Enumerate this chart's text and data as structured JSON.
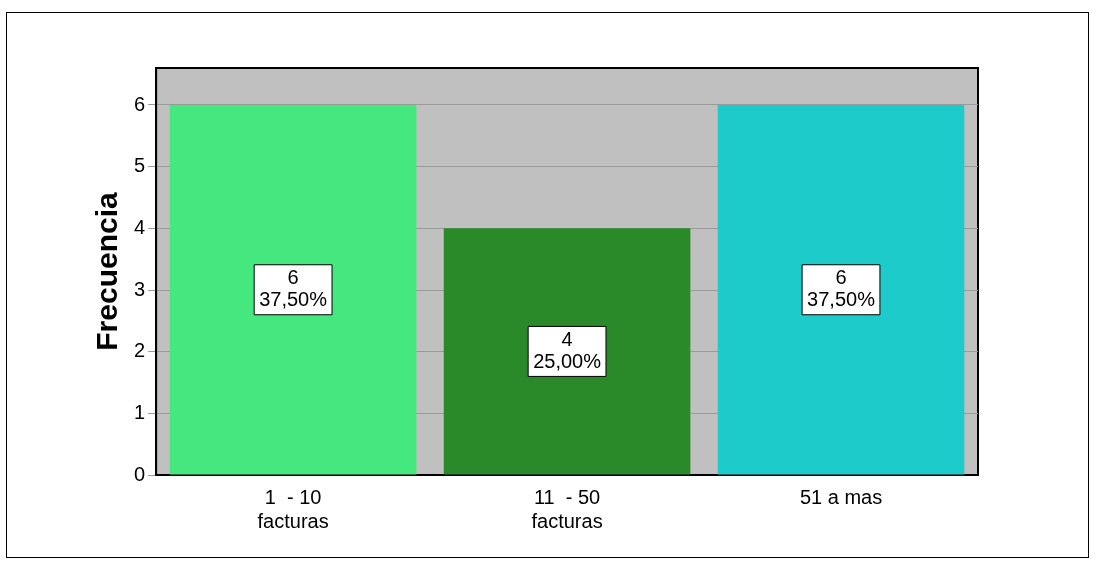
{
  "chart_data": {
    "type": "bar",
    "ylabel": "Frecuencia",
    "categories": [
      "1  - 10\nfacturas",
      "11  - 50\nfacturas",
      "51 a mas"
    ],
    "values": [
      6,
      4,
      6
    ],
    "colors": [
      "#44e87e",
      "#2a8a2a",
      "#1ecbcb"
    ],
    "value_labels": [
      "6\n37,50%",
      "4\n25,00%",
      "6\n37,50%"
    ],
    "ylim": [
      0,
      6.6
    ],
    "yticks": [
      0,
      1,
      2,
      3,
      4,
      5,
      6
    ],
    "grid": "y",
    "legend": false
  }
}
